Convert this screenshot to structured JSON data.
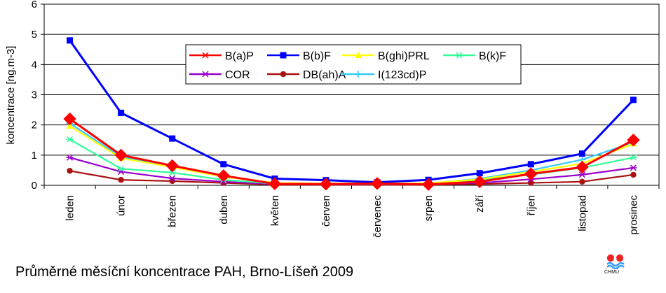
{
  "chart_data": {
    "type": "line",
    "title": "",
    "xlabel": "",
    "ylabel": "koncentrace [ng.m-3]",
    "ylim": [
      0,
      6
    ],
    "yticks": [
      "0",
      "1",
      "2",
      "3",
      "4",
      "5",
      "6"
    ],
    "grid": true,
    "legend_position": "top-center",
    "categories": [
      "leden",
      "únor",
      "březen",
      "duben",
      "květen",
      "červen",
      "červenec",
      "srpen",
      "září",
      "říjen",
      "listopad",
      "prosinec"
    ],
    "series": [
      {
        "name": "B(a)P",
        "color": "#ff0000",
        "marker": "diamond-big",
        "values": [
          2.2,
          1.0,
          0.65,
          0.32,
          0.05,
          0.04,
          0.06,
          0.03,
          0.12,
          0.38,
          0.6,
          1.5
        ]
      },
      {
        "name": "B(b)F",
        "color": "#0000ff",
        "marker": "square",
        "values": [
          4.8,
          2.4,
          1.55,
          0.7,
          0.22,
          0.17,
          0.1,
          0.18,
          0.4,
          0.7,
          1.05,
          2.83
        ]
      },
      {
        "name": "B(ghi)PRL",
        "color": "#ffff00",
        "marker": "triangle",
        "values": [
          1.97,
          0.9,
          0.6,
          0.28,
          0.08,
          0.06,
          0.06,
          0.07,
          0.2,
          0.45,
          0.72,
          1.38
        ]
      },
      {
        "name": "B(k)F",
        "color": "#33ff99",
        "marker": "star",
        "values": [
          1.52,
          0.55,
          0.42,
          0.18,
          0.06,
          0.05,
          0.04,
          0.05,
          0.18,
          0.35,
          0.58,
          0.92
        ]
      },
      {
        "name": "COR",
        "color": "#9900cc",
        "marker": "star",
        "values": [
          0.92,
          0.45,
          0.23,
          0.12,
          0.04,
          0.03,
          0.03,
          0.04,
          0.08,
          0.2,
          0.35,
          0.58
        ]
      },
      {
        "name": "DB(ah)A",
        "color": "#aa1111",
        "marker": "circle",
        "values": [
          0.48,
          0.18,
          0.14,
          0.08,
          0.02,
          0.02,
          0.01,
          0.02,
          0.04,
          0.08,
          0.12,
          0.35
        ]
      },
      {
        "name": "I(123cd)P",
        "color": "#33ccff",
        "marker": "plus",
        "values": [
          2.05,
          0.95,
          0.62,
          0.3,
          0.07,
          0.05,
          0.05,
          0.06,
          0.22,
          0.5,
          0.85,
          1.42
        ]
      }
    ]
  },
  "caption": "Průměrné měsíční koncentrace PAH, Brno-Líšeň 2009",
  "logo": {
    "text": "ČHMÚ",
    "colors": [
      "#ee2222",
      "#3399ff"
    ]
  }
}
